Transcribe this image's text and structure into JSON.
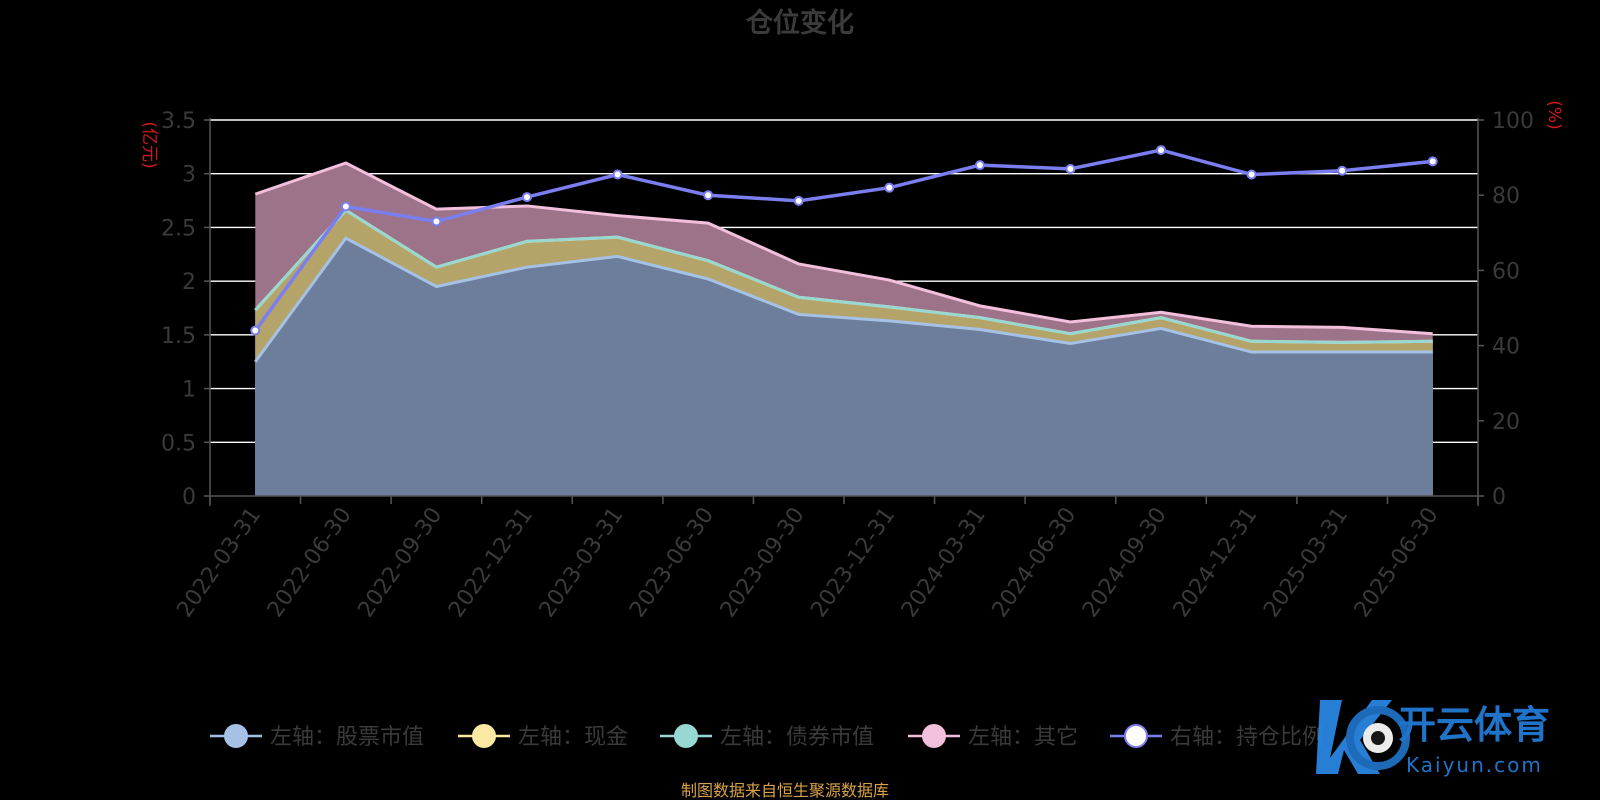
{
  "chart_data": {
    "type": "area",
    "title": "仓位变化",
    "categories": [
      "2022-03-31",
      "2022-06-30",
      "2022-09-30",
      "2022-12-31",
      "2023-03-31",
      "2023-06-30",
      "2023-09-30",
      "2023-12-31",
      "2024-03-31",
      "2024-06-30",
      "2024-09-30",
      "2024-12-31",
      "2025-03-31",
      "2025-06-30"
    ],
    "y_left": {
      "unit": "(亿元)",
      "ylim": [
        0,
        3.5
      ],
      "ticks": [
        "0",
        "0.5",
        "1",
        "1.5",
        "2",
        "2.5",
        "3",
        "3.5"
      ]
    },
    "y_right": {
      "unit": "(%)",
      "ylim": [
        0,
        100
      ],
      "ticks": [
        "0",
        "20",
        "40",
        "60",
        "80",
        "100"
      ]
    },
    "stacked_series": [
      {
        "name": "左轴：股票市值",
        "color": "#a5c2e6",
        "fill": "#6c7e9b",
        "values": [
          1.25,
          2.4,
          1.95,
          2.13,
          2.23,
          2.02,
          1.69,
          1.63,
          1.55,
          1.42,
          1.56,
          1.34,
          1.34,
          1.34
        ]
      },
      {
        "name": "左轴：现金",
        "color": "#fbe8a3",
        "fill": "#b5a46a",
        "values": [
          0.48,
          0.26,
          0.18,
          0.24,
          0.18,
          0.17,
          0.16,
          0.13,
          0.11,
          0.09,
          0.1,
          0.1,
          0.09,
          0.1
        ]
      },
      {
        "name": "左轴：债券市值",
        "color": "#98d8d2",
        "fill": "#6da39f",
        "values": [
          0,
          0,
          0,
          0,
          0,
          0,
          0,
          0,
          0,
          0,
          0,
          0,
          0,
          0
        ]
      },
      {
        "name": "左轴：其它",
        "color": "#f2bfdc",
        "fill": "#9d7389",
        "values": [
          1.08,
          0.44,
          0.54,
          0.33,
          0.2,
          0.35,
          0.31,
          0.25,
          0.11,
          0.11,
          0.05,
          0.14,
          0.14,
          0.07
        ]
      }
    ],
    "line_series": {
      "name": "右轴：持仓比例",
      "color": "#7b7ef0",
      "axis": "right",
      "values": [
        44,
        77,
        73,
        79.5,
        85.5,
        80,
        78.5,
        82,
        88,
        87,
        92,
        85.5,
        86.5,
        89
      ]
    },
    "grid": true,
    "legend_position": "bottom"
  },
  "footer": {
    "source": "制图数据来自恒生聚源数据库"
  },
  "watermark": {
    "text": "开云体育",
    "sub": "Kaiyun.com",
    "color": "#1f73c8"
  }
}
